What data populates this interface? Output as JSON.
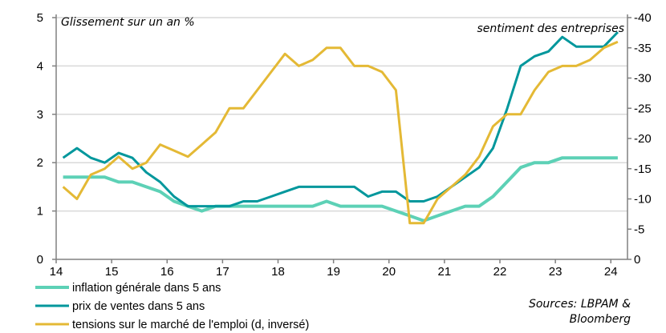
{
  "chart_data": {
    "type": "line",
    "left_axis_label": "Glissement sur un an %",
    "right_axis_label": "sentiment des entreprises",
    "ylim_left": [
      0,
      5
    ],
    "yticks_left": [
      "0",
      "1",
      "2",
      "3",
      "4",
      "5"
    ],
    "ylim_right": [
      0,
      -40
    ],
    "yticks_right": [
      "0",
      "-5",
      "-10",
      "-15",
      "-20",
      "-25",
      "-30",
      "-35",
      "-40"
    ],
    "right_axis_inverted": true,
    "xlim": [
      14,
      24.3
    ],
    "xticks": [
      "14",
      "15",
      "16",
      "17",
      "18",
      "19",
      "20",
      "21",
      "22",
      "23",
      "24"
    ],
    "x": [
      14.125,
      14.375,
      14.625,
      14.875,
      15.125,
      15.375,
      15.625,
      15.875,
      16.125,
      16.375,
      16.625,
      16.875,
      17.125,
      17.375,
      17.625,
      17.875,
      18.125,
      18.375,
      18.625,
      18.875,
      19.125,
      19.375,
      19.625,
      19.875,
      20.125,
      20.375,
      20.625,
      20.875,
      21.125,
      21.375,
      21.625,
      21.875,
      22.125,
      22.375,
      22.625,
      22.875,
      23.125,
      23.375,
      23.625,
      23.875,
      24.125
    ],
    "grid": "horizontal",
    "legend_position": "bottom-left",
    "series": [
      {
        "name": "inflation générale dans 5 ans",
        "axis": "left",
        "color": "#5dd1b6",
        "values": [
          1.7,
          1.7,
          1.7,
          1.7,
          1.6,
          1.6,
          1.5,
          1.4,
          1.2,
          1.1,
          1.0,
          1.1,
          1.1,
          1.1,
          1.1,
          1.1,
          1.1,
          1.1,
          1.1,
          1.2,
          1.1,
          1.1,
          1.1,
          1.1,
          1.0,
          0.9,
          0.8,
          0.9,
          1.0,
          1.1,
          1.1,
          1.3,
          1.6,
          1.9,
          2.0,
          2.0,
          2.1,
          2.1,
          2.1,
          2.1,
          2.1
        ]
      },
      {
        "name": "prix de ventes dans 5 ans",
        "axis": "left",
        "color": "#00979c",
        "values": [
          2.1,
          2.3,
          2.1,
          2.0,
          2.2,
          2.1,
          1.8,
          1.6,
          1.3,
          1.1,
          1.1,
          1.1,
          1.1,
          1.2,
          1.2,
          1.3,
          1.4,
          1.5,
          1.5,
          1.5,
          1.5,
          1.5,
          1.3,
          1.4,
          1.4,
          1.2,
          1.2,
          1.3,
          1.5,
          1.7,
          1.9,
          2.3,
          3.1,
          4.0,
          4.2,
          4.3,
          4.6,
          4.4,
          4.4,
          4.4,
          4.7
        ]
      },
      {
        "name": "tensions sur le marché de l'emploi (d, inversé)",
        "axis": "right",
        "color": "#e4b935",
        "values": [
          -12,
          -10,
          -14,
          -15,
          -17,
          -15,
          -16,
          -19,
          -18,
          -17,
          -19,
          -21,
          -25,
          -25,
          -28,
          -31,
          -34,
          -32,
          -33,
          -35,
          -35,
          -32,
          -32,
          -31,
          -28,
          -6,
          -6,
          -10,
          -12,
          -14,
          -17,
          -22,
          -24,
          -24,
          -28,
          -31,
          -32,
          -32,
          -33,
          -35,
          -36
        ]
      }
    ],
    "sources": [
      "Sources: LBPAM &",
      "Bloomberg"
    ]
  }
}
